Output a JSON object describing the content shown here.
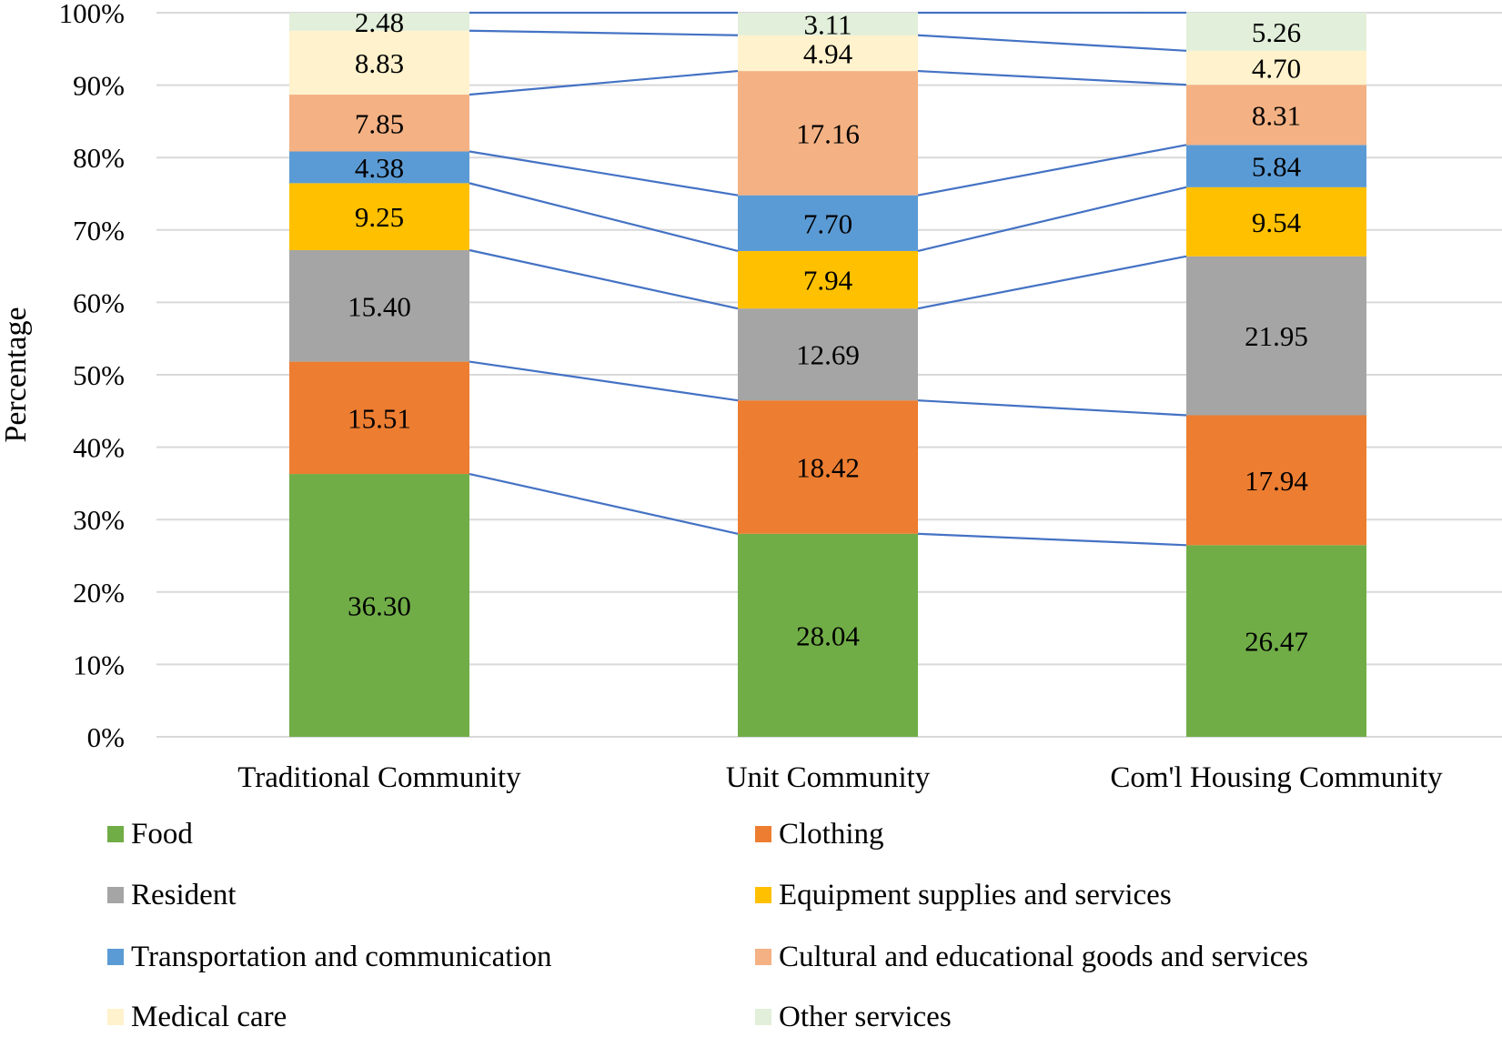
{
  "chart_data": {
    "type": "bar",
    "stacked": true,
    "percent": true,
    "title": "",
    "xlabel": "",
    "ylabel": "Percentage",
    "ylim": [
      0,
      100
    ],
    "y_ticks": [
      "0%",
      "10%",
      "20%",
      "30%",
      "40%",
      "50%",
      "60%",
      "70%",
      "80%",
      "90%",
      "100%"
    ],
    "grid": true,
    "series_lines": true,
    "legend_position": "bottom",
    "categories": [
      "Traditional Community",
      "Unit Community",
      "Com'l Housing Community"
    ],
    "series": [
      {
        "name": "Food",
        "color": "#70AD47",
        "values": [
          36.3,
          28.04,
          26.47
        ],
        "labels": [
          "36.30",
          "28.04",
          "26.47"
        ]
      },
      {
        "name": "Clothing",
        "color": "#ED7D31",
        "values": [
          15.51,
          18.42,
          17.94
        ],
        "labels": [
          "15.51",
          "18.42",
          "17.94"
        ]
      },
      {
        "name": "Resident",
        "color": "#A5A5A5",
        "values": [
          15.4,
          12.69,
          21.95
        ],
        "labels": [
          "15.40",
          "12.69",
          "21.95"
        ]
      },
      {
        "name": "Equipment supplies and services",
        "color": "#FFC000",
        "values": [
          9.25,
          7.94,
          9.54
        ],
        "labels": [
          "9.25",
          "7.94",
          "9.54"
        ]
      },
      {
        "name": "Transportation and communication",
        "color": "#5B9BD5",
        "values": [
          4.38,
          7.7,
          5.84
        ],
        "labels": [
          "4.38",
          "7.70",
          "5.84"
        ]
      },
      {
        "name": "Cultural and educational goods and services",
        "color": "#F4B183",
        "values": [
          7.85,
          17.16,
          8.31
        ],
        "labels": [
          "7.85",
          "17.16",
          "8.31"
        ]
      },
      {
        "name": "Medical care",
        "color": "#FFF2CC",
        "values": [
          8.83,
          4.94,
          4.7
        ],
        "labels": [
          "8.83",
          "4.94",
          "4.70"
        ]
      },
      {
        "name": "Other services",
        "color": "#E2EFDA",
        "values": [
          2.48,
          3.11,
          5.26
        ],
        "labels": [
          "2.48",
          "3.11",
          "5.26"
        ]
      }
    ],
    "connector_color": "#4472C4",
    "grid_color": "#D9D9D9"
  }
}
